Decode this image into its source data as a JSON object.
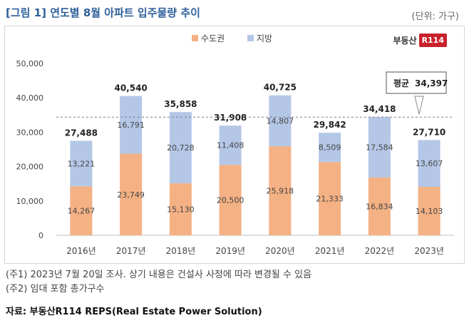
{
  "figure_title": "[그림 1] 연도별 8월 아파트 입주물량 추이",
  "unit_label": "(단위: 가구)",
  "logo": {
    "text": "부동산",
    "badge": "R114"
  },
  "notes": [
    "(주1) 2023년 7월 20일 조사. 상기 내용은 건설사 사정에 따라 변경될 수 있음",
    "(주2) 임대 포함 총가구수"
  ],
  "source": "자료: 부동산R114 REPS(Real Estate Power Solution)",
  "colors": {
    "capital": "#f4b183",
    "region": "#b4c7e7"
  },
  "chart_data": {
    "type": "bar",
    "stacked": true,
    "categories": [
      "2016년",
      "2017년",
      "2018년",
      "2019년",
      "2020년",
      "2021년",
      "2022년",
      "2023년"
    ],
    "series": [
      {
        "name": "수도권",
        "values": [
          14267,
          23749,
          15130,
          20500,
          25918,
          21333,
          16834,
          14103
        ],
        "labels": [
          "14,267",
          "23,749",
          "15,130",
          "20,500",
          "25,918",
          "21,333",
          "16,834",
          "14,103"
        ]
      },
      {
        "name": "지방",
        "values": [
          13221,
          16791,
          20728,
          11408,
          14807,
          8509,
          17584,
          13607
        ],
        "labels": [
          "13,221",
          "16,791",
          "20,728",
          "11,408",
          "14,807",
          "8,509",
          "17,584",
          "13,607"
        ]
      }
    ],
    "totals": [
      27488,
      40540,
      35858,
      31908,
      40725,
      29842,
      34418,
      27710
    ],
    "total_labels": [
      "27,488",
      "40,540",
      "35,858",
      "31,908",
      "40,725",
      "29,842",
      "34,418",
      "27,710"
    ],
    "y_ticks": [
      0,
      10000,
      20000,
      30000,
      40000,
      50000
    ],
    "y_tick_labels": [
      "0",
      "10,000",
      "20,000",
      "30,000",
      "40,000",
      "50,000"
    ],
    "ylim": [
      0,
      50000
    ],
    "average": {
      "value": 34397,
      "label": "평균",
      "value_label": "34,397"
    },
    "legend_position": "top-center",
    "grid": false
  }
}
